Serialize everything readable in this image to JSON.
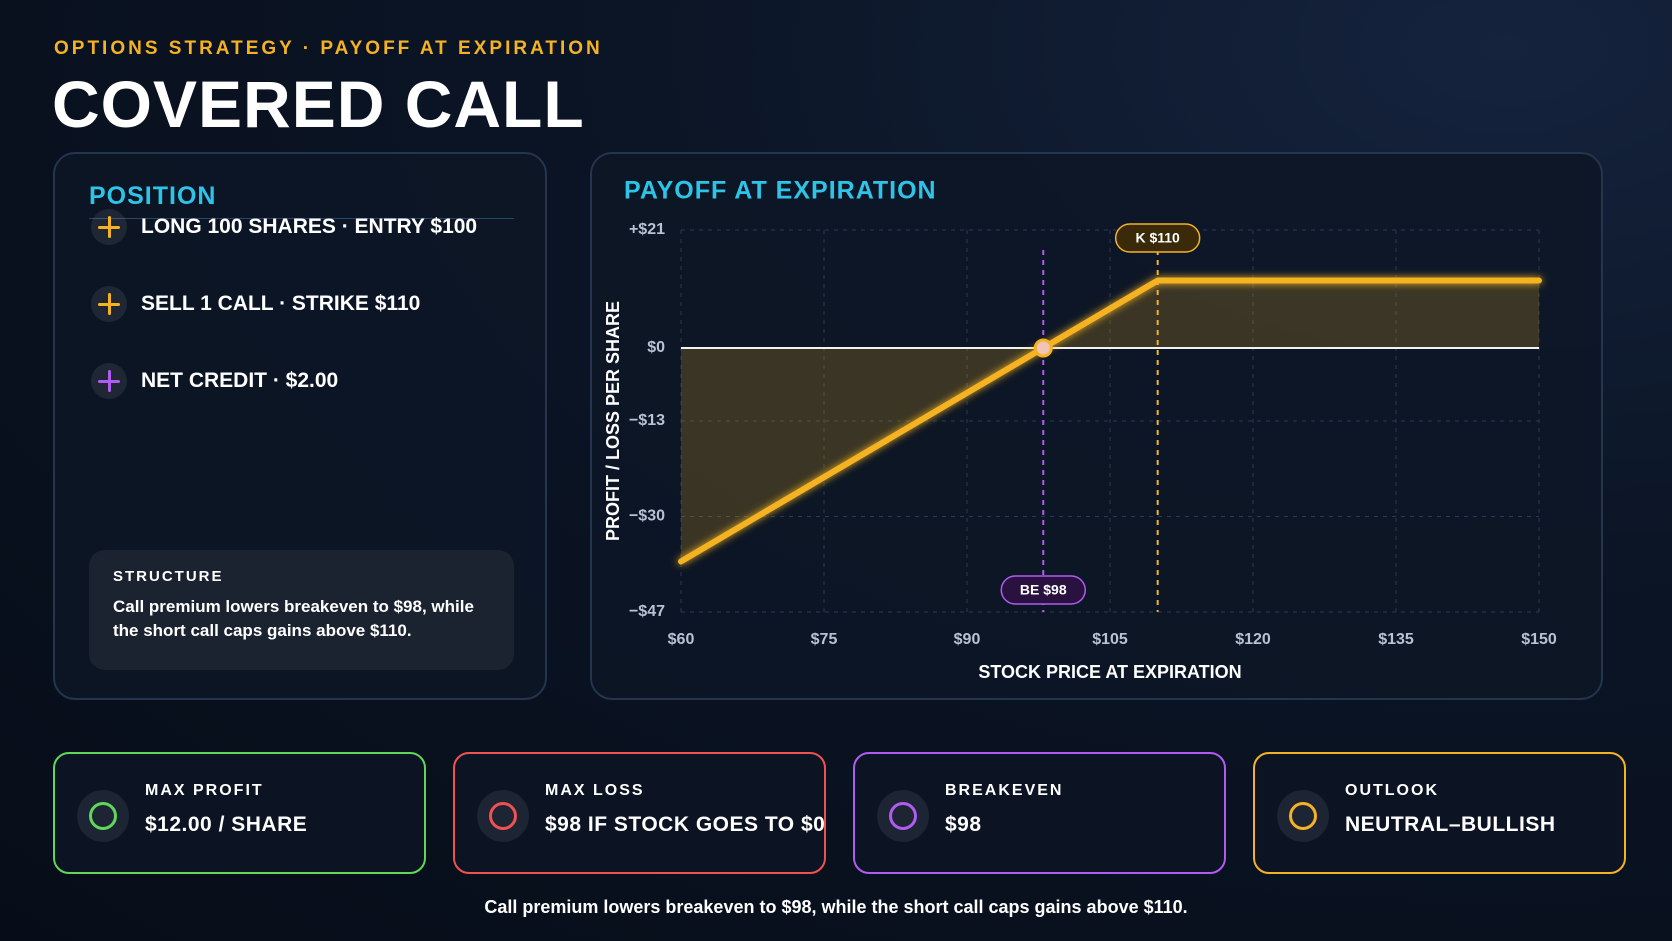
{
  "eyebrow": "OPTIONS STRATEGY · PAYOFF AT EXPIRATION",
  "title": "COVERED CALL",
  "position": {
    "title": "POSITION",
    "items": [
      {
        "text": "LONG 100 SHARES · ENTRY $100",
        "color": "#f5b324"
      },
      {
        "text": "SELL 1 CALL · STRIKE $110",
        "color": "#f5b324"
      },
      {
        "text": "NET CREDIT · $2.00",
        "color": "#b05cf0"
      }
    ],
    "structure": {
      "title": "STRUCTURE",
      "text": "Call premium lowers breakeven to $98, while the short call caps gains above $110."
    }
  },
  "chart_data": {
    "type": "line",
    "title": "PAYOFF AT EXPIRATION",
    "x_label": "STOCK PRICE AT EXPIRATION",
    "y_label": "PROFIT / LOSS PER SHARE",
    "x": [
      60,
      98,
      110,
      150
    ],
    "values": [
      -38,
      0,
      12,
      12
    ],
    "color": "#f5b324",
    "xlim": [
      60,
      150
    ],
    "xticks": [
      {
        "value": 60,
        "label": "$60"
      },
      {
        "value": 75,
        "label": "$75"
      },
      {
        "value": 90,
        "label": "$90"
      },
      {
        "value": 105,
        "label": "$105"
      },
      {
        "value": 120,
        "label": "$120"
      },
      {
        "value": 135,
        "label": "$135"
      },
      {
        "value": 150,
        "label": "$150"
      }
    ],
    "ylim": [
      -47,
      21
    ],
    "yticks": [
      {
        "value": 21,
        "label": "+$21"
      },
      {
        "value": 0,
        "label": "$0"
      },
      {
        "value": -13,
        "label": "−$13"
      },
      {
        "value": -30,
        "label": "−$30"
      },
      {
        "value": -47,
        "label": "−$47"
      }
    ],
    "grid": true,
    "annotations": [
      {
        "text": "K $110",
        "x": 110,
        "color": "#f5b324"
      },
      {
        "text": "BE $98",
        "x": 98,
        "color": "#b05cf0"
      }
    ]
  },
  "cards": [
    {
      "label": "MAX PROFIT",
      "value": "$12.00 / SHARE",
      "color": "#5fd85a"
    },
    {
      "label": "MAX LOSS",
      "value": "$98 IF STOCK GOES TO $0",
      "color": "#f05252"
    },
    {
      "label": "BREAKEVEN",
      "value": "$98",
      "color": "#b05cf0"
    },
    {
      "label": "OUTLOOK",
      "value": "NEUTRAL–BULLISH",
      "color": "#f5b324"
    }
  ],
  "footer": "Call premium lowers breakeven to $98, while the short call caps gains above $110."
}
